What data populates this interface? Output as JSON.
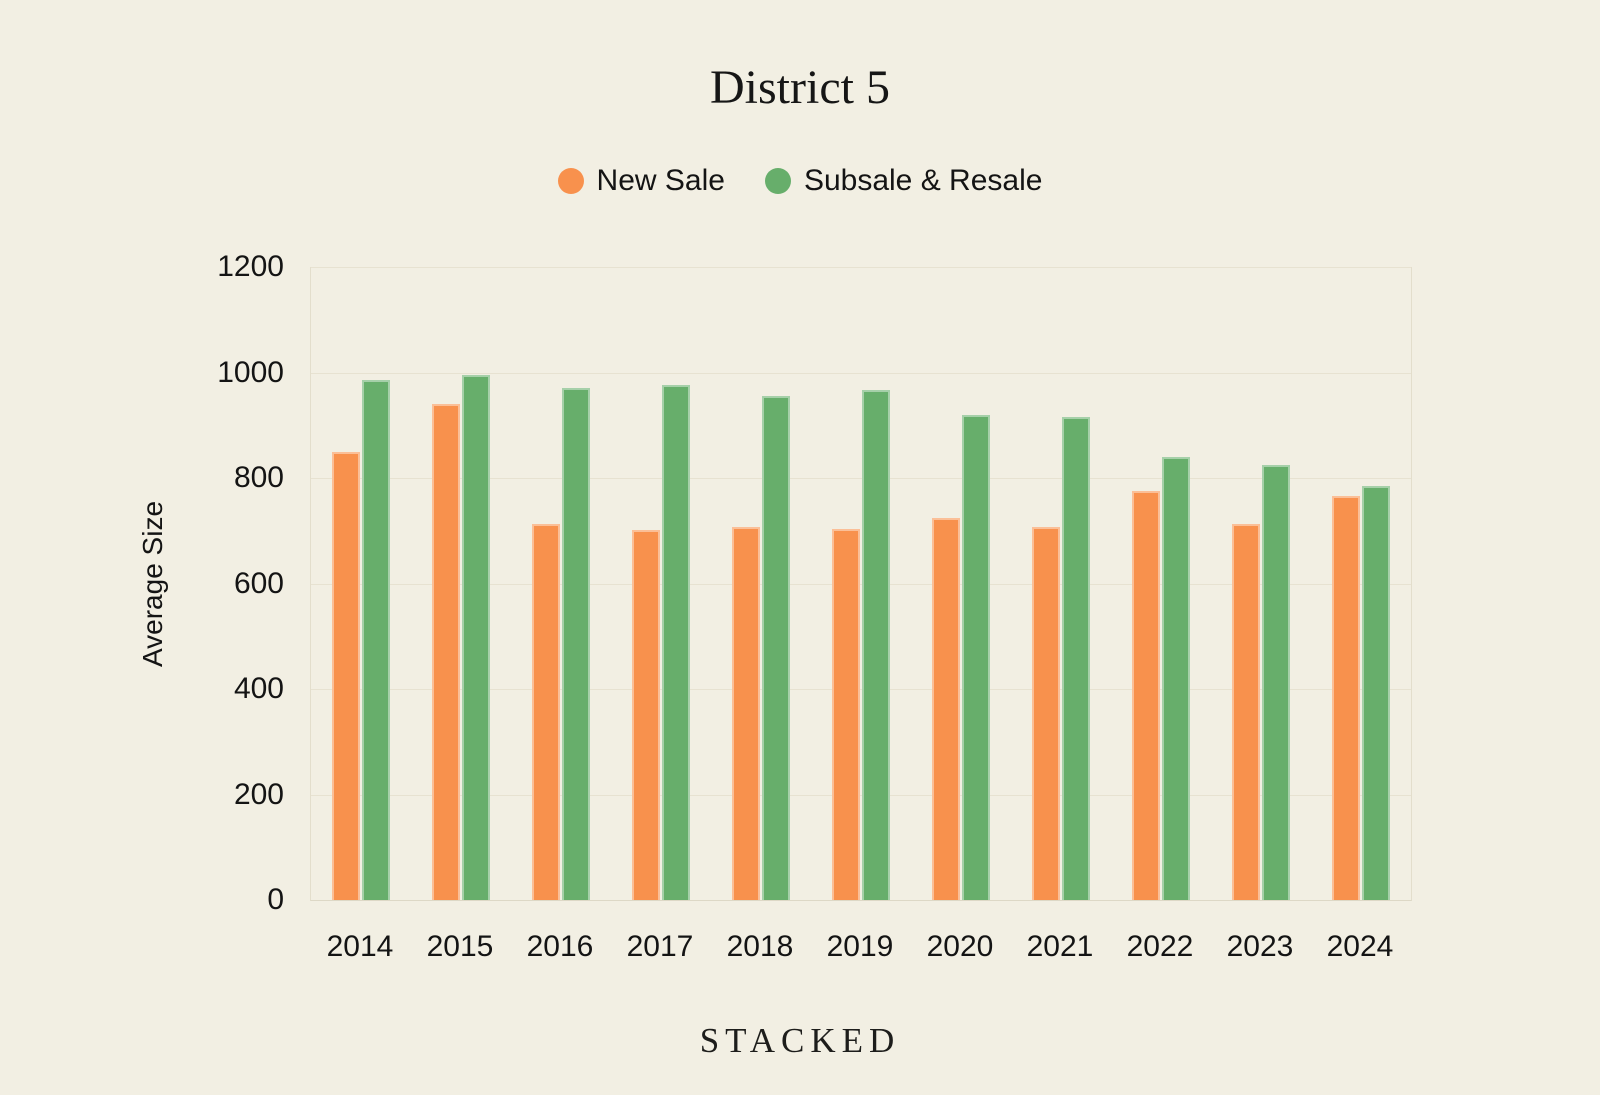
{
  "page": {
    "background": "#F2EFE3",
    "text_color": "#1C1C1C",
    "gridline_color": "#E7E2D1",
    "footer_wordmark": "STACKED"
  },
  "chart_data": {
    "type": "bar",
    "title": "District 5",
    "xlabel": "",
    "ylabel": "Average Size",
    "categories": [
      "2014",
      "2015",
      "2016",
      "2017",
      "2018",
      "2019",
      "2020",
      "2021",
      "2022",
      "2023",
      "2024"
    ],
    "series": [
      {
        "name": "New Sale",
        "color": "#F8914D",
        "values": [
          850,
          940,
          713,
          701,
          707,
          704,
          724,
          708,
          775,
          713,
          765
        ]
      },
      {
        "name": "Subsale & Resale",
        "color": "#67AE6B",
        "values": [
          985,
          995,
          970,
          976,
          955,
          967,
          920,
          916,
          839,
          824,
          784
        ]
      }
    ],
    "ylim": [
      0,
      1200
    ],
    "ytick_step": 200,
    "yticks": [
      0,
      200,
      400,
      600,
      800,
      1000,
      1200
    ],
    "grid": "horizontal",
    "legend_position": "top"
  }
}
